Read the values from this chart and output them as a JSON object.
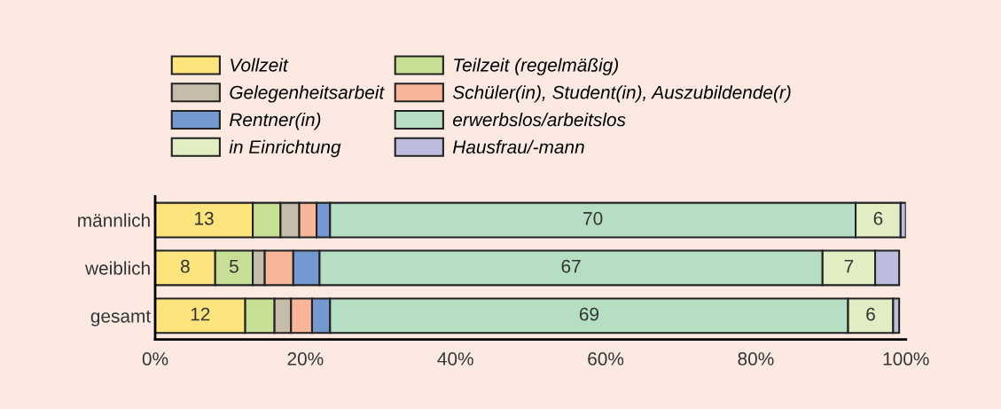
{
  "chart_data": {
    "type": "bar",
    "orientation": "horizontal",
    "stacked": true,
    "legend": "top",
    "grid": false,
    "categories": [
      "männlich",
      "weiblich",
      "gesamt"
    ],
    "xlim": [
      0,
      100
    ],
    "xticks": [
      {
        "value": 0,
        "label": "0%"
      },
      {
        "value": 20,
        "label": "20%"
      },
      {
        "value": 40,
        "label": "40%"
      },
      {
        "value": 60,
        "label": "60%"
      },
      {
        "value": 80,
        "label": "80%"
      },
      {
        "value": 100,
        "label": "100%"
      }
    ],
    "series": [
      {
        "name": "Vollzeit",
        "color": "#fee47c",
        "values": [
          13,
          8,
          12
        ],
        "value_labels": [
          "13",
          "8",
          "12"
        ]
      },
      {
        "name": "Teilzeit (regelmäßig)",
        "color": "#c6df94",
        "values": [
          3.7,
          5,
          3.9
        ],
        "value_labels": [
          null,
          "5",
          null
        ]
      },
      {
        "name": "Gelegenheitsarbeit",
        "color": "#c5bda9",
        "values": [
          2.5,
          1.6,
          2.2
        ]
      },
      {
        "name": "Schüler(in), Student(in), Auszubildende(r)",
        "color": "#f9b597",
        "values": [
          2.3,
          3.8,
          2.8
        ]
      },
      {
        "name": "Rentner(in)",
        "color": "#7499cf",
        "values": [
          1.8,
          3.5,
          2.4
        ]
      },
      {
        "name": "erwerbslos/arbeitslos",
        "color": "#b5dec3",
        "values": [
          70,
          67,
          69
        ],
        "value_labels": [
          "70",
          "67",
          "69"
        ]
      },
      {
        "name": "in Einrichtung",
        "color": "#e1edc2",
        "values": [
          6,
          7,
          6
        ],
        "value_labels": [
          "6",
          "7",
          "6"
        ]
      },
      {
        "name": "Hausfrau/-mann",
        "color": "#bdbcdf",
        "values": [
          0.7,
          3.2,
          0.8
        ]
      }
    ]
  }
}
